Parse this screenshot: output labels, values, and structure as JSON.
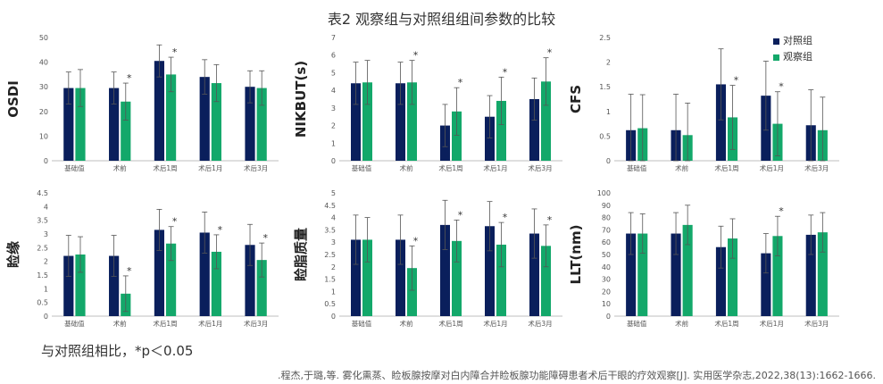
{
  "title": "表2  观察组与对照组组间参数的比较",
  "legend": {
    "series": [
      {
        "name": "对照组",
        "color": "#0a1f5c"
      },
      {
        "name": "观察组",
        "color": "#13a86a"
      }
    ]
  },
  "note": "与对照组相比，*p＜0.05",
  "citation": ".程杰,于璐,等. 雾化熏蒸、睑板腺按摩对白内障合并睑板腺功能障碍患者术后干眼的疗效观察[J]. 实用医学杂志,2022,38(13):1662-1666.",
  "chart_data": [
    {
      "type": "bar",
      "ylabel": "OSDI",
      "ylim": [
        0,
        50
      ],
      "yticks": [
        0,
        10,
        20,
        30,
        40,
        50
      ],
      "categories": [
        "基础值",
        "术前",
        "术后1周",
        "术后1月",
        "术后3月"
      ],
      "series": [
        {
          "name": "对照组",
          "values": [
            29.5,
            29.5,
            40.5,
            34,
            30
          ],
          "err": [
            6.5,
            6.5,
            6.5,
            7,
            6.5
          ]
        },
        {
          "name": "观察组",
          "values": [
            29.5,
            24,
            35,
            31.5,
            29.5
          ],
          "err": [
            7.5,
            7.5,
            7,
            7.5,
            7
          ]
        }
      ],
      "star": [
        false,
        true,
        true,
        false,
        false
      ]
    },
    {
      "type": "bar",
      "ylabel": "NIKBUT(s)",
      "ylim": [
        0,
        7
      ],
      "yticks": [
        0,
        1,
        2,
        3,
        4,
        5,
        6,
        7
      ],
      "categories": [
        "基础值",
        "术前",
        "术后1周",
        "术后1月",
        "术后3月"
      ],
      "series": [
        {
          "name": "对照组",
          "values": [
            4.4,
            4.4,
            2,
            2.5,
            3.5
          ],
          "err": [
            1.2,
            1.2,
            1.2,
            1.2,
            1.2
          ]
        },
        {
          "name": "观察组",
          "values": [
            4.45,
            4.45,
            2.8,
            3.4,
            4.5
          ],
          "err": [
            1.25,
            1.25,
            1.35,
            1.35,
            1.35
          ]
        }
      ],
      "star": [
        false,
        true,
        true,
        true,
        true
      ]
    },
    {
      "type": "bar",
      "ylabel": "CFS",
      "ylim": [
        0,
        2.5
      ],
      "yticks": [
        0,
        0.5,
        1,
        1.5,
        2,
        2.5
      ],
      "categories": [
        "基础值",
        "术前",
        "术后1周",
        "术后1月",
        "术后3月"
      ],
      "series": [
        {
          "name": "对照组",
          "values": [
            0.62,
            0.62,
            1.55,
            1.32,
            0.72
          ],
          "err": [
            0.73,
            0.73,
            0.72,
            0.7,
            0.72
          ]
        },
        {
          "name": "观察组",
          "values": [
            0.66,
            0.52,
            0.88,
            0.75,
            0.62
          ],
          "err": [
            0.68,
            0.65,
            0.65,
            0.65,
            0.67
          ]
        }
      ],
      "star": [
        false,
        false,
        true,
        true,
        false
      ]
    },
    {
      "type": "bar",
      "ylabel": "睑缘",
      "ylim": [
        0,
        4.5
      ],
      "yticks": [
        0,
        0.5,
        1,
        1.5,
        2,
        2.5,
        3,
        3.5,
        4,
        4.5
      ],
      "categories": [
        "基础值",
        "术前",
        "术后1周",
        "术后1月",
        "术后3月"
      ],
      "series": [
        {
          "name": "对照组",
          "values": [
            2.2,
            2.2,
            3.15,
            3.05,
            2.6
          ],
          "err": [
            0.75,
            0.75,
            0.75,
            0.75,
            0.75
          ]
        },
        {
          "name": "观察组",
          "values": [
            2.25,
            0.82,
            2.65,
            2.35,
            2.05
          ],
          "err": [
            0.65,
            0.65,
            0.62,
            0.62,
            0.62
          ]
        }
      ],
      "star": [
        false,
        true,
        true,
        true,
        true
      ]
    },
    {
      "type": "bar",
      "ylabel": "睑脂质量",
      "ylim": [
        0,
        5
      ],
      "yticks": [
        0,
        0.5,
        1,
        1.5,
        2,
        2.5,
        3,
        3.5,
        4,
        4.5,
        5
      ],
      "categories": [
        "基础值",
        "术前",
        "术后1周",
        "术后1月",
        "术后3月"
      ],
      "series": [
        {
          "name": "对照组",
          "values": [
            3.1,
            3.1,
            3.7,
            3.65,
            3.35
          ],
          "err": [
            1,
            1,
            1,
            1,
            1
          ]
        },
        {
          "name": "观察组",
          "values": [
            3.1,
            1.95,
            3.05,
            2.9,
            2.85
          ],
          "err": [
            0.9,
            0.9,
            0.85,
            0.9,
            0.85
          ]
        }
      ],
      "star": [
        false,
        true,
        true,
        true,
        true
      ]
    },
    {
      "type": "bar",
      "ylabel": "LLT(nm)",
      "ylim": [
        0,
        100
      ],
      "yticks": [
        0,
        10,
        20,
        30,
        40,
        50,
        60,
        70,
        80,
        90,
        100
      ],
      "categories": [
        "基础值",
        "术前",
        "术后1周",
        "术后1月",
        "术后3月"
      ],
      "series": [
        {
          "name": "对照组",
          "values": [
            67,
            67,
            56,
            51,
            66
          ],
          "err": [
            17,
            17,
            17,
            16,
            16
          ]
        },
        {
          "name": "观察组",
          "values": [
            67,
            74,
            63,
            65,
            68
          ],
          "err": [
            16,
            16,
            16,
            16,
            16
          ]
        }
      ],
      "star": [
        false,
        false,
        false,
        true,
        false
      ]
    }
  ]
}
